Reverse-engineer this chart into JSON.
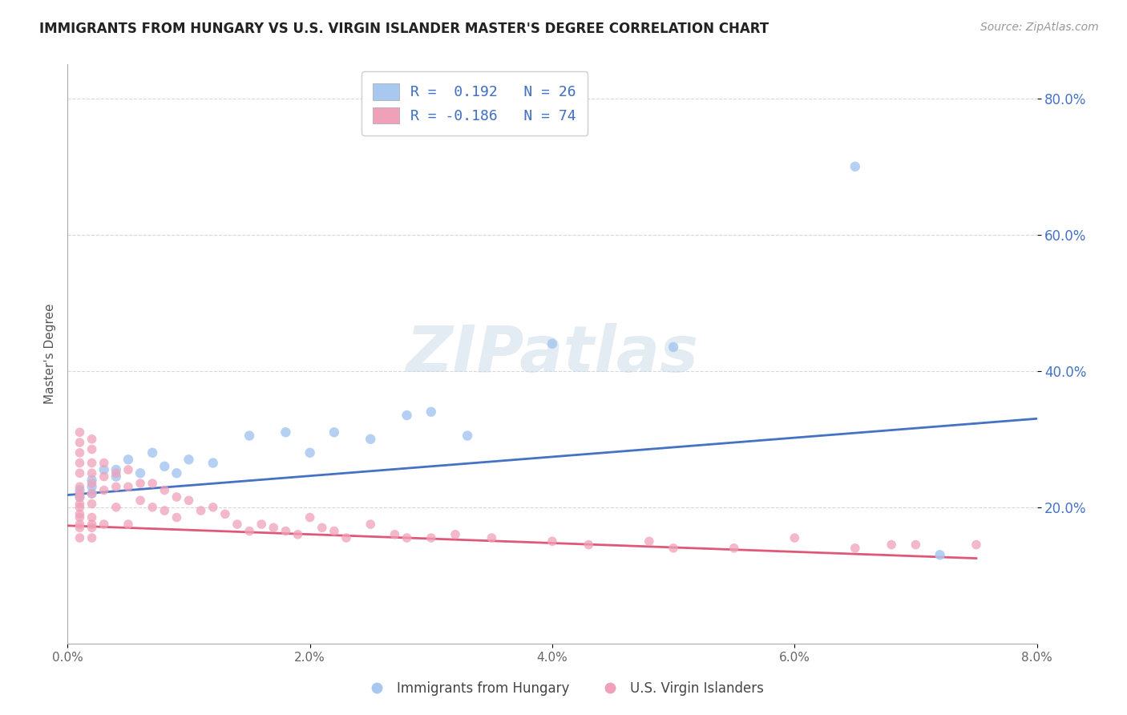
{
  "title": "IMMIGRANTS FROM HUNGARY VS U.S. VIRGIN ISLANDER MASTER'S DEGREE CORRELATION CHART",
  "source": "Source: ZipAtlas.com",
  "ylabel_label": "Master's Degree",
  "xlim": [
    0.0,
    0.08
  ],
  "ylim": [
    0.0,
    0.85
  ],
  "xtick_labels": [
    "0.0%",
    "2.0%",
    "4.0%",
    "6.0%",
    "8.0%"
  ],
  "xtick_values": [
    0.0,
    0.02,
    0.04,
    0.06,
    0.08
  ],
  "ytick_labels": [
    "20.0%",
    "40.0%",
    "60.0%",
    "80.0%"
  ],
  "ytick_values": [
    0.2,
    0.4,
    0.6,
    0.8
  ],
  "blue_color": "#a8c8f0",
  "pink_color": "#f0a0b8",
  "blue_line_color": "#4472c4",
  "pink_line_color": "#e05878",
  "blue_scatter_x": [
    0.001,
    0.001,
    0.002,
    0.002,
    0.002,
    0.003,
    0.004,
    0.004,
    0.005,
    0.006,
    0.007,
    0.008,
    0.009,
    0.01,
    0.012,
    0.015,
    0.018,
    0.02,
    0.022,
    0.025,
    0.028,
    0.03,
    0.033,
    0.04,
    0.05,
    0.065,
    0.072
  ],
  "blue_scatter_y": [
    0.215,
    0.225,
    0.22,
    0.23,
    0.24,
    0.255,
    0.245,
    0.255,
    0.27,
    0.25,
    0.28,
    0.26,
    0.25,
    0.27,
    0.265,
    0.305,
    0.31,
    0.28,
    0.31,
    0.3,
    0.335,
    0.34,
    0.305,
    0.44,
    0.435,
    0.7,
    0.13
  ],
  "pink_scatter_x": [
    0.001,
    0.001,
    0.001,
    0.001,
    0.001,
    0.001,
    0.001,
    0.001,
    0.001,
    0.001,
    0.001,
    0.001,
    0.001,
    0.001,
    0.001,
    0.002,
    0.002,
    0.002,
    0.002,
    0.002,
    0.002,
    0.002,
    0.002,
    0.002,
    0.002,
    0.002,
    0.003,
    0.003,
    0.003,
    0.003,
    0.004,
    0.004,
    0.004,
    0.005,
    0.005,
    0.005,
    0.006,
    0.006,
    0.007,
    0.007,
    0.008,
    0.008,
    0.009,
    0.009,
    0.01,
    0.011,
    0.012,
    0.013,
    0.014,
    0.015,
    0.016,
    0.017,
    0.018,
    0.019,
    0.02,
    0.021,
    0.022,
    0.023,
    0.025,
    0.027,
    0.028,
    0.03,
    0.032,
    0.035,
    0.04,
    0.043,
    0.048,
    0.05,
    0.055,
    0.06,
    0.065,
    0.068,
    0.07,
    0.075
  ],
  "pink_scatter_y": [
    0.31,
    0.295,
    0.28,
    0.265,
    0.25,
    0.23,
    0.215,
    0.2,
    0.185,
    0.17,
    0.155,
    0.19,
    0.175,
    0.205,
    0.22,
    0.3,
    0.285,
    0.265,
    0.25,
    0.235,
    0.22,
    0.205,
    0.185,
    0.17,
    0.155,
    0.175,
    0.265,
    0.245,
    0.225,
    0.175,
    0.25,
    0.23,
    0.2,
    0.255,
    0.23,
    0.175,
    0.235,
    0.21,
    0.235,
    0.2,
    0.225,
    0.195,
    0.215,
    0.185,
    0.21,
    0.195,
    0.2,
    0.19,
    0.175,
    0.165,
    0.175,
    0.17,
    0.165,
    0.16,
    0.185,
    0.17,
    0.165,
    0.155,
    0.175,
    0.16,
    0.155,
    0.155,
    0.16,
    0.155,
    0.15,
    0.145,
    0.15,
    0.14,
    0.14,
    0.155,
    0.14,
    0.145,
    0.145,
    0.145
  ],
  "blue_trend_x": [
    0.0,
    0.08
  ],
  "blue_trend_y": [
    0.218,
    0.33
  ],
  "pink_trend_x": [
    0.0,
    0.075
  ],
  "pink_trend_y": [
    0.173,
    0.125
  ],
  "watermark": "ZIPatlas",
  "background_color": "#ffffff",
  "grid_color": "#d8d8d8"
}
